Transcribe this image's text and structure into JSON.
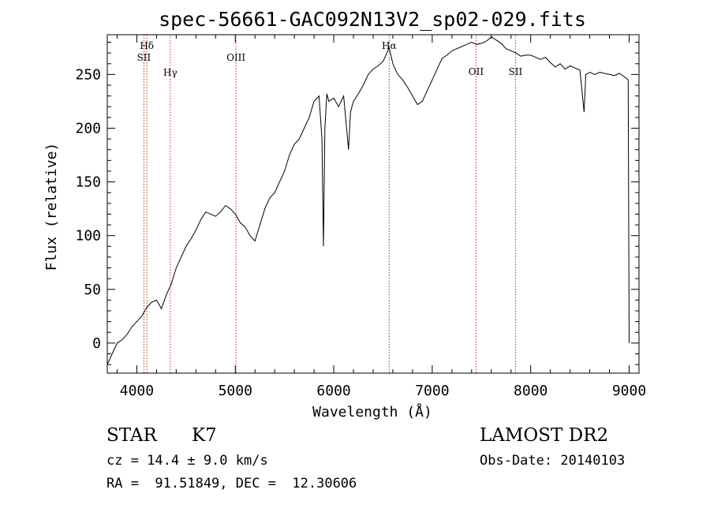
{
  "chart_data": {
    "type": "line",
    "title": "spec-56661-GAC092N13V2_sp02-029.fits",
    "xlabel": "Wavelength (Å)",
    "ylabel": "Flux (relative)",
    "xlim": [
      3700,
      9100
    ],
    "ylim": [
      -28,
      287
    ],
    "xticks": [
      4000,
      5000,
      6000,
      7000,
      8000,
      9000
    ],
    "yticks": [
      0,
      50,
      100,
      150,
      200,
      250
    ],
    "grid": false,
    "series": [
      {
        "name": "flux",
        "color": "#000000",
        "x": [
          3700,
          3750,
          3800,
          3850,
          3900,
          3950,
          4000,
          4050,
          4100,
          4150,
          4200,
          4250,
          4300,
          4350,
          4400,
          4450,
          4500,
          4550,
          4600,
          4650,
          4700,
          4750,
          4800,
          4850,
          4900,
          4950,
          5000,
          5050,
          5100,
          5150,
          5200,
          5250,
          5300,
          5350,
          5400,
          5450,
          5500,
          5550,
          5600,
          5650,
          5700,
          5750,
          5800,
          5850,
          5880,
          5895,
          5910,
          5930,
          5950,
          6000,
          6050,
          6100,
          6130,
          6150,
          6170,
          6200,
          6250,
          6300,
          6350,
          6400,
          6450,
          6500,
          6530,
          6563,
          6600,
          6650,
          6700,
          6750,
          6800,
          6850,
          6900,
          6950,
          7000,
          7050,
          7100,
          7150,
          7200,
          7250,
          7300,
          7350,
          7400,
          7450,
          7500,
          7550,
          7600,
          7650,
          7700,
          7750,
          7800,
          7850,
          7900,
          7950,
          8000,
          8050,
          8100,
          8150,
          8200,
          8250,
          8300,
          8350,
          8400,
          8450,
          8500,
          8542,
          8560,
          8600,
          8650,
          8700,
          8750,
          8800,
          8850,
          8900,
          8950,
          8990,
          9000
        ],
        "y": [
          -20,
          -10,
          0,
          3,
          8,
          15,
          20,
          25,
          33,
          38,
          40,
          32,
          45,
          55,
          70,
          80,
          90,
          97,
          105,
          115,
          122,
          120,
          118,
          122,
          128,
          125,
          120,
          112,
          108,
          100,
          95,
          110,
          125,
          135,
          140,
          150,
          160,
          175,
          185,
          190,
          200,
          210,
          225,
          230,
          190,
          90,
          200,
          232,
          225,
          228,
          220,
          230,
          200,
          180,
          215,
          225,
          232,
          240,
          250,
          255,
          258,
          262,
          268,
          275,
          260,
          250,
          245,
          238,
          230,
          222,
          225,
          235,
          245,
          255,
          265,
          268,
          272,
          274,
          276,
          278,
          280,
          278,
          279,
          281,
          285,
          282,
          279,
          274,
          272,
          270,
          267,
          268,
          268,
          266,
          264,
          266,
          261,
          257,
          260,
          255,
          258,
          256,
          254,
          215,
          250,
          252,
          250,
          252,
          251,
          250,
          249,
          251,
          248,
          245,
          0
        ]
      }
    ],
    "emission_lines": [
      {
        "label": "Hδ",
        "wavelength": 4102
      },
      {
        "label": "SII",
        "wavelength": 4072
      },
      {
        "label": "Hγ",
        "wavelength": 4340
      },
      {
        "label": "OIII",
        "wavelength": 5007
      },
      {
        "label": "Hα",
        "wavelength": 6563
      },
      {
        "label": "OII",
        "wavelength": 7445
      },
      {
        "label": "SII",
        "wavelength": 7845
      }
    ],
    "line_color": "#b03020"
  },
  "info": {
    "object_class": "STAR",
    "subclass": "K7",
    "survey": "LAMOST DR2",
    "redshift_text": "cz = 14.4 ± 9.0 km/s",
    "obs_date_text": "Obs-Date: 20140103",
    "coords_text": "RA =  91.51849, DEC =  12.30606"
  }
}
